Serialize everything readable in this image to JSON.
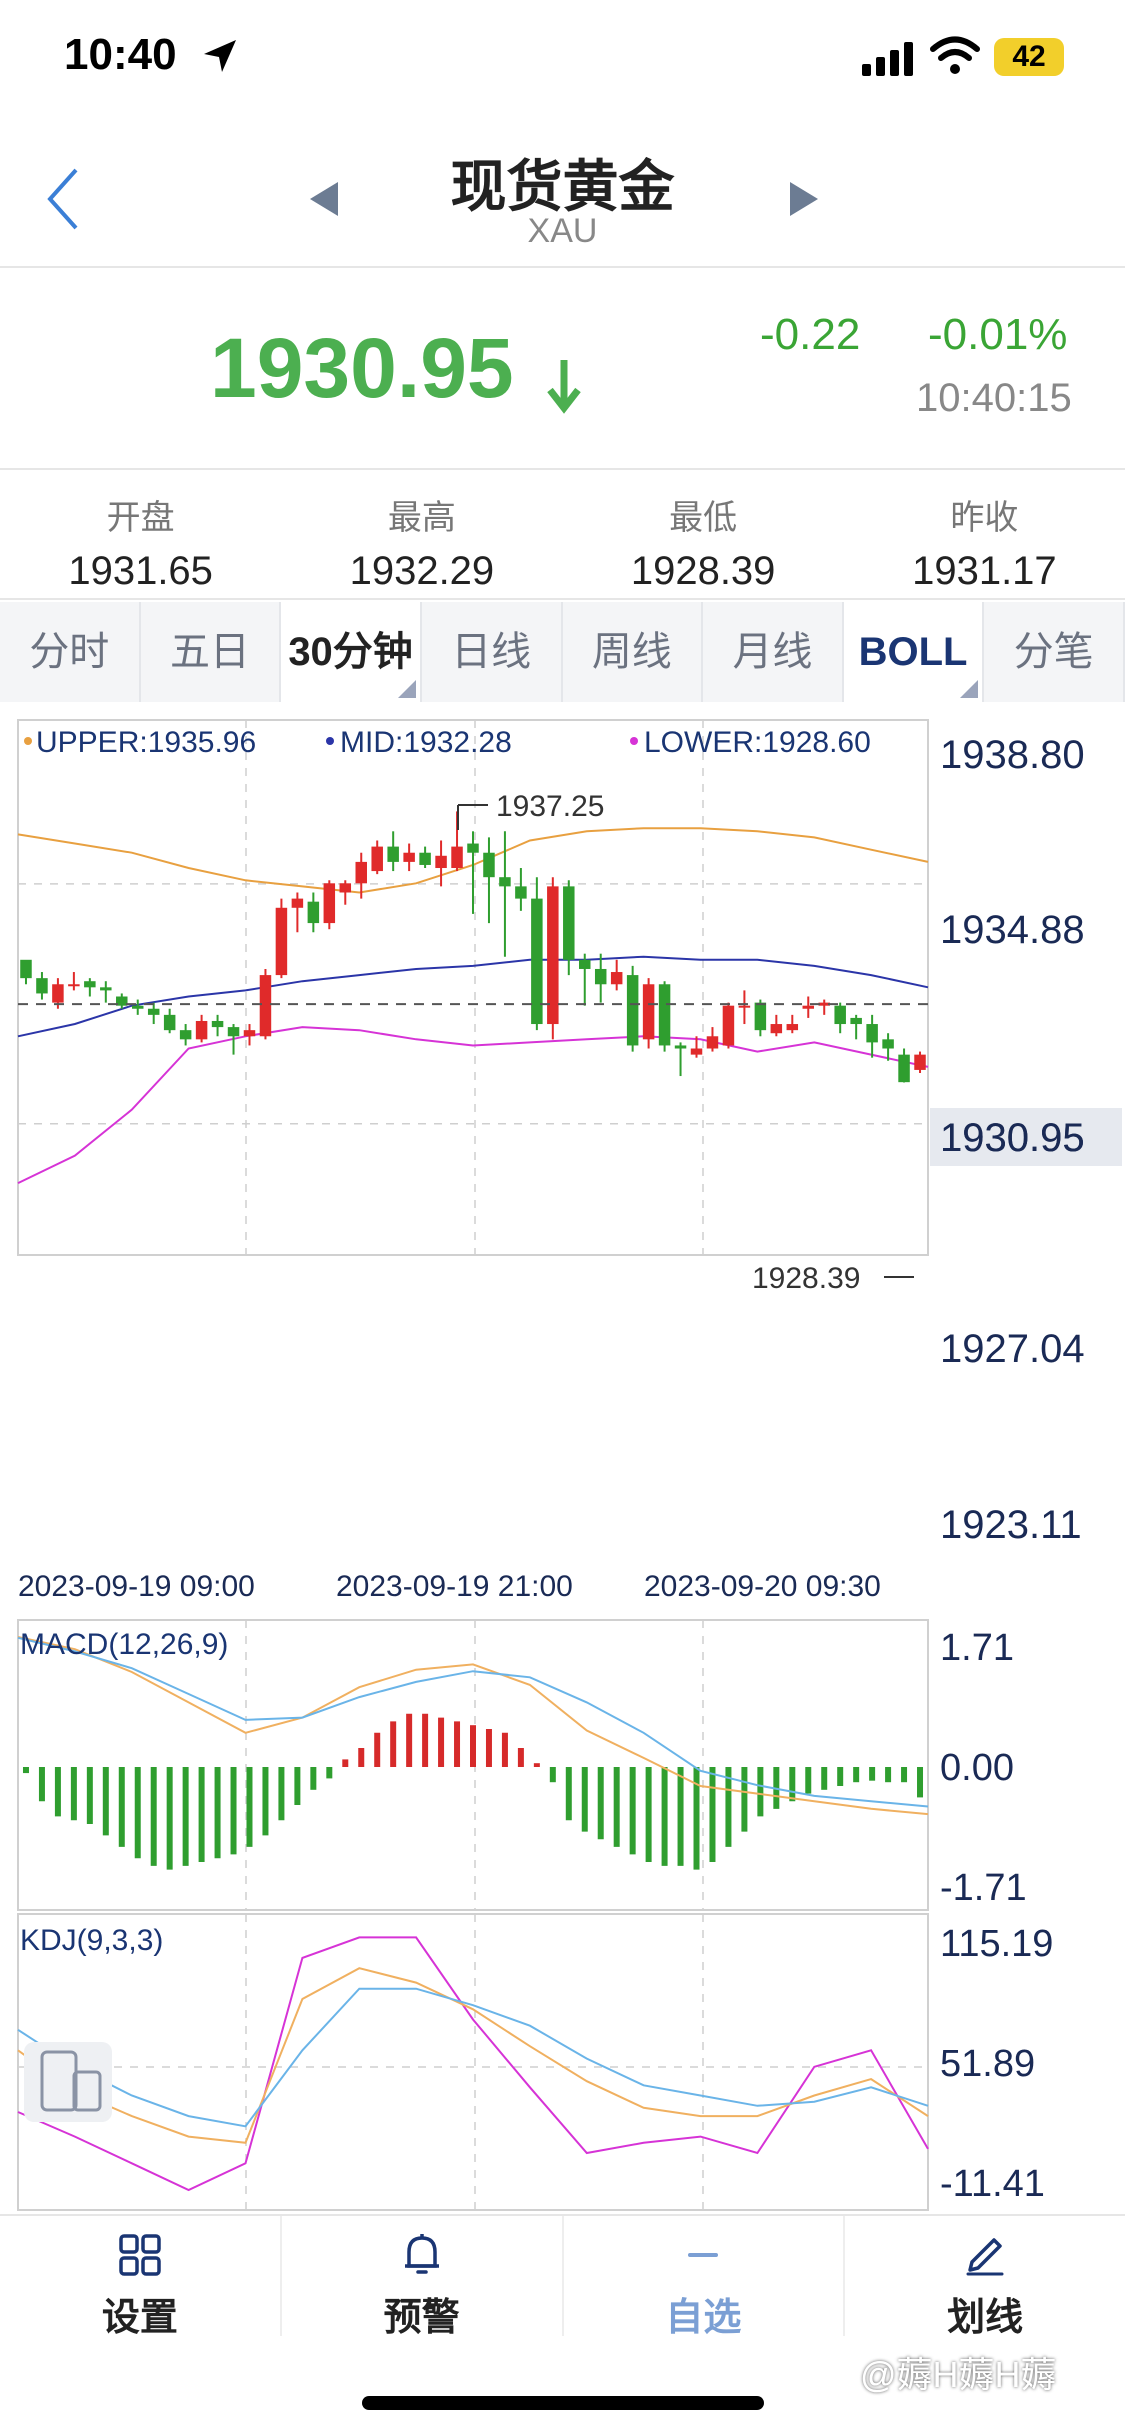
{
  "status": {
    "time": "10:40",
    "battery": "42"
  },
  "header": {
    "title": "现货黄金",
    "subtitle": "XAU"
  },
  "quote": {
    "price": "1930.95",
    "change": "-0.22",
    "change_pct": "-0.01%",
    "time": "10:40:15",
    "down_color": "#4caf50"
  },
  "ohlc": [
    {
      "label": "开盘",
      "value": "1931.65"
    },
    {
      "label": "最高",
      "value": "1932.29"
    },
    {
      "label": "最低",
      "value": "1928.39"
    },
    {
      "label": "昨收",
      "value": "1931.17"
    }
  ],
  "tabs": [
    "分时",
    "五日",
    "30分钟",
    "日线",
    "周线",
    "月线",
    "BOLL",
    "分笔"
  ],
  "nav": [
    {
      "label": "设置",
      "icon": "grid-icon"
    },
    {
      "label": "预警",
      "icon": "bell-icon"
    },
    {
      "label": "自选",
      "icon": "minus-icon"
    },
    {
      "label": "划线",
      "icon": "pen-icon"
    }
  ],
  "watermark": "@薅H薅H薅",
  "chart_data": [
    {
      "type": "candlestick",
      "title": "",
      "legend": [
        {
          "name": "UPPER",
          "value": "1935.96",
          "color": "#e8a040"
        },
        {
          "name": "MID",
          "value": "1932.28",
          "color": "#2b35a8"
        },
        {
          "name": "LOWER",
          "value": "1928.60",
          "color": "#d633d6"
        }
      ],
      "ylim": [
        1923.11,
        1938.8
      ],
      "y_ticks": [
        "1938.80",
        "1934.88",
        "1930.95",
        "1927.04",
        "1923.11"
      ],
      "x_ticks": [
        "2023-09-19 09:00",
        "2023-09-19 21:00",
        "2023-09-20 09:30"
      ],
      "current_price": 1930.95,
      "high_label": "1937.25",
      "low_label": "1928.39",
      "up_color": "#e02a2a",
      "down_color": "#2f9e2f",
      "candles": [
        [
          1932.4,
          1931.8,
          1932.2,
          1931.6
        ],
        [
          1931.8,
          1931.3,
          1932.0,
          1931.1
        ],
        [
          1931.0,
          1931.6,
          1931.8,
          1930.8
        ],
        [
          1931.6,
          1931.6,
          1932.0,
          1931.4
        ],
        [
          1931.7,
          1931.5,
          1931.8,
          1931.2
        ],
        [
          1931.5,
          1931.4,
          1931.7,
          1931.0
        ],
        [
          1931.2,
          1930.9,
          1931.3,
          1930.8
        ],
        [
          1930.9,
          1930.8,
          1931.1,
          1930.6
        ],
        [
          1930.8,
          1930.6,
          1931.0,
          1930.3
        ],
        [
          1930.6,
          1930.1,
          1930.8,
          1930.0
        ],
        [
          1930.1,
          1929.8,
          1930.3,
          1929.6
        ],
        [
          1929.8,
          1930.4,
          1930.6,
          1929.7
        ],
        [
          1930.4,
          1930.2,
          1930.6,
          1929.9
        ],
        [
          1930.2,
          1929.9,
          1930.3,
          1929.3
        ],
        [
          1929.9,
          1930.1,
          1930.3,
          1929.6
        ],
        [
          1929.9,
          1931.9,
          1932.1,
          1929.8
        ],
        [
          1931.9,
          1934.1,
          1934.4,
          1931.8
        ],
        [
          1934.1,
          1934.4,
          1934.6,
          1933.3
        ],
        [
          1934.3,
          1933.6,
          1934.6,
          1933.3
        ],
        [
          1933.6,
          1934.9,
          1935.0,
          1933.4
        ],
        [
          1934.6,
          1934.9,
          1935.0,
          1934.2
        ],
        [
          1934.9,
          1935.6,
          1935.9,
          1934.4
        ],
        [
          1935.3,
          1936.1,
          1936.3,
          1935.2
        ],
        [
          1936.1,
          1935.6,
          1936.6,
          1935.3
        ],
        [
          1935.6,
          1935.9,
          1936.2,
          1935.3
        ],
        [
          1935.9,
          1935.5,
          1936.1,
          1935.4
        ],
        [
          1935.4,
          1935.8,
          1936.3,
          1934.8
        ],
        [
          1935.4,
          1936.1,
          1937.25,
          1935.3
        ],
        [
          1936.2,
          1935.9,
          1936.6,
          1933.9
        ],
        [
          1935.9,
          1935.1,
          1936.4,
          1933.6
        ],
        [
          1935.1,
          1934.8,
          1936.6,
          1932.5
        ],
        [
          1934.8,
          1934.4,
          1935.4,
          1934.0
        ],
        [
          1934.4,
          1930.3,
          1935.1,
          1930.1
        ],
        [
          1930.3,
          1934.8,
          1935.1,
          1929.8
        ],
        [
          1934.8,
          1932.4,
          1935.0,
          1931.9
        ],
        [
          1932.4,
          1932.1,
          1932.6,
          1930.9
        ],
        [
          1932.1,
          1931.6,
          1932.6,
          1931.0
        ],
        [
          1931.6,
          1932.0,
          1932.4,
          1931.4
        ],
        [
          1931.9,
          1929.6,
          1932.2,
          1929.4
        ],
        [
          1929.8,
          1931.6,
          1931.8,
          1929.5
        ],
        [
          1931.6,
          1929.6,
          1931.7,
          1929.4
        ],
        [
          1929.6,
          1929.5,
          1929.7,
          1928.6
        ],
        [
          1929.3,
          1929.5,
          1929.9,
          1929.2
        ],
        [
          1929.5,
          1929.9,
          1930.2,
          1929.4
        ],
        [
          1929.6,
          1930.9,
          1931.0,
          1929.5
        ],
        [
          1930.9,
          1930.9,
          1931.4,
          1930.3
        ],
        [
          1931.0,
          1930.1,
          1931.1,
          1929.9
        ],
        [
          1930.0,
          1930.3,
          1930.6,
          1929.9
        ],
        [
          1930.1,
          1930.3,
          1930.6,
          1930.0
        ],
        [
          1930.8,
          1930.9,
          1931.2,
          1930.5
        ],
        [
          1930.9,
          1931.0,
          1931.1,
          1930.6
        ],
        [
          1930.9,
          1930.3,
          1931.0,
          1930.0
        ],
        [
          1930.5,
          1930.3,
          1930.6,
          1929.8
        ],
        [
          1930.3,
          1929.7,
          1930.6,
          1929.2
        ],
        [
          1929.8,
          1929.5,
          1930.0,
          1929.1
        ],
        [
          1929.3,
          1928.4,
          1929.5,
          1928.39
        ],
        [
          1928.8,
          1929.3,
          1929.4,
          1928.7
        ]
      ],
      "upper": [
        1936.5,
        1936.2,
        1935.9,
        1935.4,
        1935.0,
        1934.8,
        1934.6,
        1934.9,
        1935.5,
        1936.3,
        1936.6,
        1936.7,
        1936.7,
        1936.6,
        1936.4,
        1936.0,
        1935.6
      ],
      "mid": [
        1929.9,
        1930.3,
        1930.9,
        1931.2,
        1931.4,
        1931.7,
        1931.9,
        1932.1,
        1932.2,
        1932.4,
        1932.4,
        1932.5,
        1932.4,
        1932.4,
        1932.2,
        1931.9,
        1931.5
      ],
      "lower": [
        1925.1,
        1926.0,
        1927.5,
        1929.5,
        1929.9,
        1930.2,
        1930.1,
        1929.8,
        1929.6,
        1929.7,
        1929.8,
        1929.9,
        1929.8,
        1929.4,
        1929.7,
        1929.3,
        1928.9
      ]
    },
    {
      "type": "macd",
      "title": "MACD(12,26,9)",
      "ylim": [
        -1.71,
        1.71
      ],
      "y_ticks": [
        "1.71",
        "0.00",
        "-1.71"
      ],
      "dif": [
        1.71,
        1.55,
        1.25,
        0.85,
        0.45,
        0.65,
        1.05,
        1.28,
        1.35,
        1.08,
        0.48,
        0.12,
        -0.25,
        -0.35,
        -0.45,
        -0.55,
        -0.62
      ],
      "dea": [
        1.7,
        1.52,
        1.3,
        0.96,
        0.62,
        0.65,
        0.92,
        1.12,
        1.26,
        1.18,
        0.85,
        0.45,
        -0.05,
        -0.24,
        -0.38,
        -0.45,
        -0.52
      ],
      "hist": [
        -0.08,
        -0.45,
        -0.65,
        -0.7,
        -0.75,
        -0.9,
        -1.05,
        -1.2,
        -1.3,
        -1.35,
        -1.3,
        -1.25,
        -1.2,
        -1.15,
        -1.05,
        -0.9,
        -0.7,
        -0.5,
        -0.3,
        -0.15,
        0.1,
        0.25,
        0.45,
        0.6,
        0.7,
        0.7,
        0.65,
        0.6,
        0.55,
        0.5,
        0.45,
        0.25,
        0.05,
        -0.2,
        -0.7,
        -0.85,
        -0.95,
        -1.05,
        -1.15,
        -1.25,
        -1.3,
        -1.3,
        -1.35,
        -1.25,
        -1.05,
        -0.85,
        -0.65,
        -0.55,
        -0.45,
        -0.35,
        -0.3,
        -0.25,
        -0.2,
        -0.18,
        -0.2,
        -0.2,
        -0.4
      ]
    },
    {
      "type": "kdj",
      "title": "KDJ(9,3,3)",
      "ylim": [
        -11.41,
        115.19
      ],
      "y_ticks": [
        "115.19",
        "51.89",
        "-11.41"
      ],
      "k": [
        60,
        40,
        28,
        18,
        15,
        85,
        100,
        93,
        80,
        62,
        45,
        32,
        28,
        28,
        38,
        46,
        28
      ],
      "d": [
        70,
        52,
        38,
        28,
        23,
        60,
        90,
        90,
        82,
        72,
        56,
        43,
        38,
        33,
        35,
        42,
        33
      ],
      "j": [
        30,
        18,
        5,
        -8,
        5,
        105,
        115,
        115,
        75,
        42,
        10,
        15,
        18,
        10,
        52,
        60,
        12
      ]
    }
  ]
}
